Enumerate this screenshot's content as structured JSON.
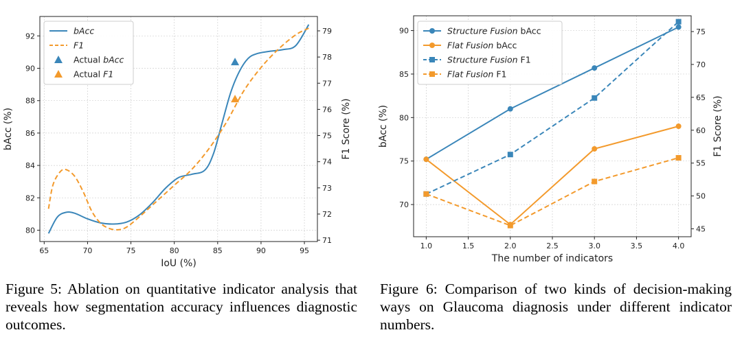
{
  "colors": {
    "blue": "#3a86b9",
    "orange": "#f39a2c"
  },
  "chart_data": [
    {
      "type": "line",
      "id": "figure-5",
      "xlabel": "IoU (%)",
      "ylabel": "bAcc (%)",
      "y2label": "F1 Score (%)",
      "xlim": [
        64.5,
        96.5
      ],
      "ylim": [
        79.3,
        93.2
      ],
      "y2lim": [
        70.95,
        79.55
      ],
      "xticks": [
        65,
        70,
        75,
        80,
        85,
        90,
        95
      ],
      "yticks": [
        80,
        82,
        84,
        86,
        88,
        90,
        92
      ],
      "y2ticks": [
        71,
        72,
        73,
        74,
        75,
        76,
        77,
        78,
        79
      ],
      "grid": true,
      "legend_position": "top-left",
      "series": [
        {
          "name": "bAcc",
          "axis": "left",
          "style": "solid",
          "color": "blue",
          "x": [
            65.5,
            66.5,
            67.5,
            68.5,
            70,
            71.5,
            73,
            74.5,
            76,
            77.5,
            79,
            80.5,
            82,
            83.5,
            84.5,
            85.5,
            86.5,
            87.5,
            88.5,
            89.5,
            91,
            92.5,
            94,
            95.5
          ],
          "y": [
            79.8,
            80.8,
            81.1,
            81.05,
            80.7,
            80.45,
            80.38,
            80.5,
            80.95,
            81.7,
            82.6,
            83.25,
            83.45,
            83.7,
            84.7,
            86.6,
            88.5,
            89.8,
            90.6,
            90.9,
            91.05,
            91.15,
            91.4,
            92.7
          ]
        },
        {
          "name": "F1",
          "axis": "right",
          "style": "dashed",
          "color": "orange",
          "x": [
            65.5,
            66,
            66.8,
            67.5,
            68.5,
            69.5,
            70.5,
            71.5,
            72.5,
            73.5,
            74.5,
            76,
            78,
            80,
            82,
            84,
            86,
            88,
            90,
            92,
            94,
            95.5
          ],
          "y": [
            72.2,
            73.1,
            73.6,
            73.7,
            73.45,
            72.85,
            72.1,
            71.65,
            71.45,
            71.4,
            71.5,
            71.9,
            72.5,
            73.1,
            73.7,
            74.5,
            75.5,
            76.7,
            77.6,
            78.3,
            78.85,
            79.1
          ]
        },
        {
          "name": "Actual bAcc",
          "axis": "left",
          "marker": "triangle",
          "color": "blue",
          "x": [
            87
          ],
          "y": [
            90.4
          ]
        },
        {
          "name": "Actual F1",
          "axis": "right",
          "marker": "triangle",
          "color": "orange",
          "x": [
            87
          ],
          "y": [
            76.4
          ]
        }
      ]
    },
    {
      "type": "line",
      "id": "figure-6",
      "xlabel": "The number of indicators",
      "ylabel": "bAcc (%)",
      "y2label": "F1 Score (%)",
      "xlim": [
        0.85,
        4.15
      ],
      "ylim": [
        66.3,
        91.7
      ],
      "y2lim": [
        43.8,
        77.4
      ],
      "xticks": [
        1.0,
        1.5,
        2.0,
        2.5,
        3.0,
        3.5,
        4.0
      ],
      "xtick_labels": [
        "1.0",
        "1.5",
        "2.0",
        "2.5",
        "3.0",
        "3.5",
        "4.0"
      ],
      "yticks": [
        70,
        75,
        80,
        85,
        90
      ],
      "y2ticks": [
        45,
        50,
        55,
        60,
        65,
        70,
        75
      ],
      "grid": true,
      "legend_position": "top-left",
      "series": [
        {
          "name": "Structure Fusion bAcc",
          "axis": "left",
          "style": "solid",
          "marker": "circle",
          "color": "blue",
          "x": [
            1,
            2,
            3,
            4
          ],
          "y": [
            75.2,
            81.0,
            85.7,
            90.4
          ]
        },
        {
          "name": "Flat Fusion bAcc",
          "axis": "left",
          "style": "solid",
          "marker": "circle",
          "color": "orange",
          "x": [
            1,
            2,
            3,
            4
          ],
          "y": [
            75.2,
            67.7,
            76.4,
            79.0
          ]
        },
        {
          "name": "Structure Fusion F1",
          "axis": "right",
          "style": "dashed",
          "marker": "square",
          "color": "blue",
          "x": [
            1,
            2,
            3,
            4
          ],
          "y": [
            50.3,
            56.3,
            64.9,
            76.5
          ]
        },
        {
          "name": "Flat Fusion F1",
          "axis": "right",
          "style": "dashed",
          "marker": "square",
          "color": "orange",
          "x": [
            1,
            2,
            3,
            4
          ],
          "y": [
            50.3,
            45.5,
            52.2,
            55.8
          ]
        }
      ]
    }
  ],
  "legend5": [
    {
      "prefix": "",
      "italic": "bAcc",
      "suffix": ""
    },
    {
      "prefix": "",
      "italic": "F1",
      "suffix": ""
    },
    {
      "prefix": "Actual ",
      "italic": "bAcc",
      "suffix": ""
    },
    {
      "prefix": "Actual ",
      "italic": "F1",
      "suffix": ""
    }
  ],
  "legend6": [
    {
      "prefix": "",
      "italic": "Structure Fusion",
      "suffix": " bAcc"
    },
    {
      "prefix": "",
      "italic": "Flat Fusion",
      "suffix": " bAcc"
    },
    {
      "prefix": "",
      "italic": "Structure Fusion",
      "suffix": " F1"
    },
    {
      "prefix": "",
      "italic": "Flat Fusion",
      "suffix": " F1"
    }
  ],
  "captions": {
    "fig5": "Figure 5: Ablation on quantitative indicator analysis that reveals how segmentation accuracy influences diagnostic outcomes.",
    "fig6": "Figure 6: Comparison of two kinds of decision-making ways on Glaucoma diagnosis under different indicator numbers."
  }
}
